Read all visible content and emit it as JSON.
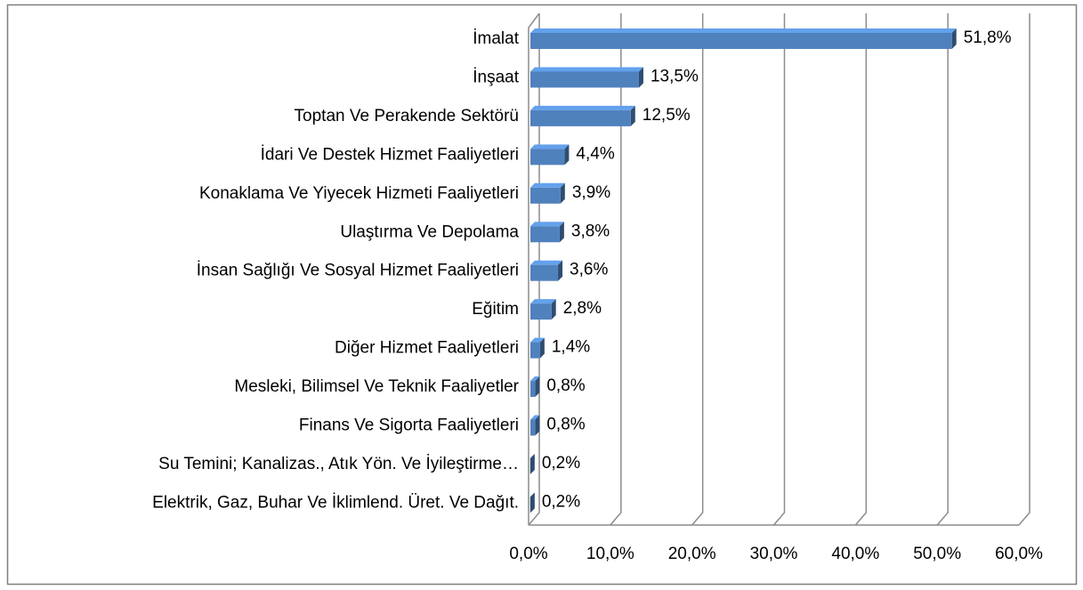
{
  "chart_data": {
    "type": "bar",
    "orientation": "horizontal",
    "categories": [
      "İmalat",
      "İnşaat",
      "Toptan Ve Perakende Sektörü",
      "İdari Ve Destek Hizmet Faaliyetleri",
      "Konaklama Ve Yiyecek Hizmeti Faaliyetleri",
      "Ulaştırma Ve Depolama",
      "İnsan Sağlığı Ve Sosyal Hizmet Faaliyetleri",
      "Eğitim",
      "Diğer Hizmet Faaliyetleri",
      "Mesleki, Bilimsel Ve Teknik Faaliyetler",
      "Finans Ve Sigorta Faaliyetleri",
      "Su Temini; Kanalizas., Atık Yön. Ve İyileştirme…",
      "Elektrik, Gaz, Buhar Ve İklimlend. Üret. Ve Dağıt."
    ],
    "values": [
      51.8,
      13.5,
      12.5,
      4.4,
      3.9,
      3.8,
      3.6,
      2.8,
      1.4,
      0.8,
      0.8,
      0.2,
      0.2
    ],
    "value_labels": [
      "51,8%",
      "13,5%",
      "12,5%",
      "4,4%",
      "3,9%",
      "3,8%",
      "3,6%",
      "2,8%",
      "1,4%",
      "0,8%",
      "0,8%",
      "0,2%",
      "0,2%"
    ],
    "color": "#4f81bd",
    "xlim": [
      0,
      60
    ],
    "xticks": [
      {
        "value": 0,
        "label": "0,0%"
      },
      {
        "value": 10,
        "label": "10,0%"
      },
      {
        "value": 20,
        "label": "20,0%"
      },
      {
        "value": 30,
        "label": "30,0%"
      },
      {
        "value": 40,
        "label": "40,0%"
      },
      {
        "value": 50,
        "label": "50,0%"
      },
      {
        "value": 60,
        "label": "60,0%"
      }
    ],
    "grid": true
  }
}
